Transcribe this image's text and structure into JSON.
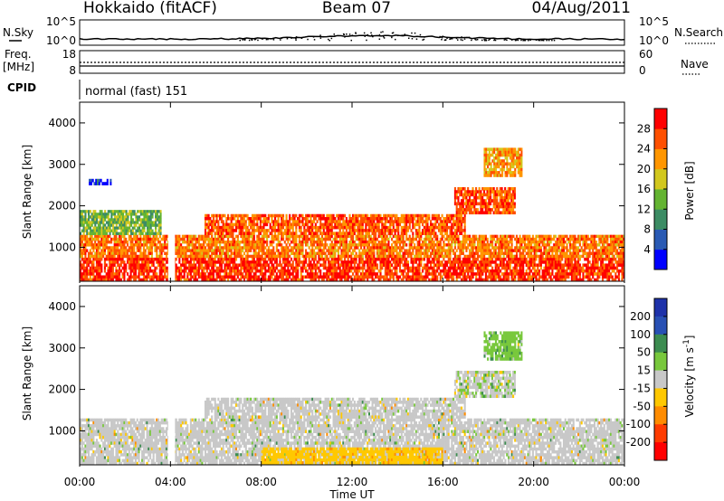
{
  "header": {
    "station": "Hokkaido (fitACF)",
    "beam": "Beam 07",
    "date": "04/Aug/2011"
  },
  "noise_panel": {
    "left_label": "N.Sky",
    "right_label": "N.Search",
    "left_top_tick": "10^5",
    "left_bottom_tick": "10^0",
    "right_top_tick": "10^5",
    "right_bottom_tick": "10^0"
  },
  "freq_panel": {
    "left_label_1": "Freq.",
    "left_label_2": "[MHz]",
    "left_top_tick": "18",
    "left_bottom_tick": "8",
    "right_label": "Nave",
    "right_top_tick": "60",
    "right_bottom_tick": "0"
  },
  "cpid_panel": {
    "label": "CPID",
    "mode_text": "normal (fast) 151"
  },
  "chart_data": [
    {
      "type": "heatmap",
      "name": "power",
      "xlabel": "Time UT",
      "ylabel": "Slant Range [km]",
      "x_ticks": [
        "00:00",
        "04:00",
        "08:00",
        "12:00",
        "16:00",
        "20:00",
        "00:00"
      ],
      "y_ticks": [
        "1000",
        "2000",
        "3000",
        "4000"
      ],
      "ylim": [
        180,
        4500
      ],
      "colorbar": {
        "label": "Power [dB]",
        "ticks": [
          "4",
          "8",
          "12",
          "16",
          "20",
          "24",
          "28"
        ],
        "colors": [
          "#0000ff",
          "#2a5ab4",
          "#3c8c64",
          "#64b432",
          "#d2c81e",
          "#ff9600",
          "#ff5000",
          "#ff0000"
        ]
      },
      "bands": [
        {
          "t_start": 0.0,
          "t_end": 24.0,
          "r_low": 180,
          "r_high": 750,
          "value": 28
        },
        {
          "t_start": 0.0,
          "t_end": 24.0,
          "r_low": 750,
          "r_high": 1300,
          "value": 24
        },
        {
          "t_start": 0.0,
          "t_end": 3.6,
          "r_low": 1300,
          "r_high": 1900,
          "value": 14
        },
        {
          "t_start": 5.5,
          "t_end": 17.0,
          "r_low": 1300,
          "r_high": 1800,
          "value": 26
        },
        {
          "t_start": 16.5,
          "t_end": 19.2,
          "r_low": 1800,
          "r_high": 2450,
          "value": 26
        },
        {
          "t_start": 17.8,
          "t_end": 19.5,
          "r_low": 2700,
          "r_high": 3400,
          "value": 22
        },
        {
          "t_start": 0.4,
          "t_end": 1.4,
          "r_low": 2500,
          "r_high": 2650,
          "value": 6
        }
      ]
    },
    {
      "type": "heatmap",
      "name": "velocity",
      "xlabel": "Time UT",
      "ylabel": "Slant Range [km]",
      "x_ticks": [
        "00:00",
        "04:00",
        "08:00",
        "12:00",
        "16:00",
        "20:00",
        "00:00"
      ],
      "y_ticks": [
        "1000",
        "2000",
        "3000",
        "4000"
      ],
      "ylim": [
        180,
        4500
      ],
      "colorbar": {
        "label": "Velocity [m s^-1]",
        "ticks": [
          "200",
          "100",
          "50",
          "15",
          "-15",
          "-50",
          "-100",
          "-200"
        ],
        "colors": [
          "#1e32aa",
          "#2850b4",
          "#3c8c50",
          "#78c83c",
          "#c8c8c8",
          "#ffc800",
          "#ff8c00",
          "#ff3c00",
          "#ff0000"
        ]
      },
      "bands": [
        {
          "t_start": 0.0,
          "t_end": 24.0,
          "r_low": 180,
          "r_high": 1300,
          "value": 0
        },
        {
          "t_start": 5.5,
          "t_end": 17.0,
          "r_low": 1300,
          "r_high": 1800,
          "value": 0
        },
        {
          "t_start": 16.5,
          "t_end": 19.2,
          "r_low": 1800,
          "r_high": 2450,
          "value": 10
        },
        {
          "t_start": 17.8,
          "t_end": 19.5,
          "r_low": 2700,
          "r_high": 3400,
          "value": 40
        },
        {
          "t_start": 8.0,
          "t_end": 16.0,
          "r_low": 200,
          "r_high": 600,
          "value": -40
        }
      ]
    }
  ]
}
